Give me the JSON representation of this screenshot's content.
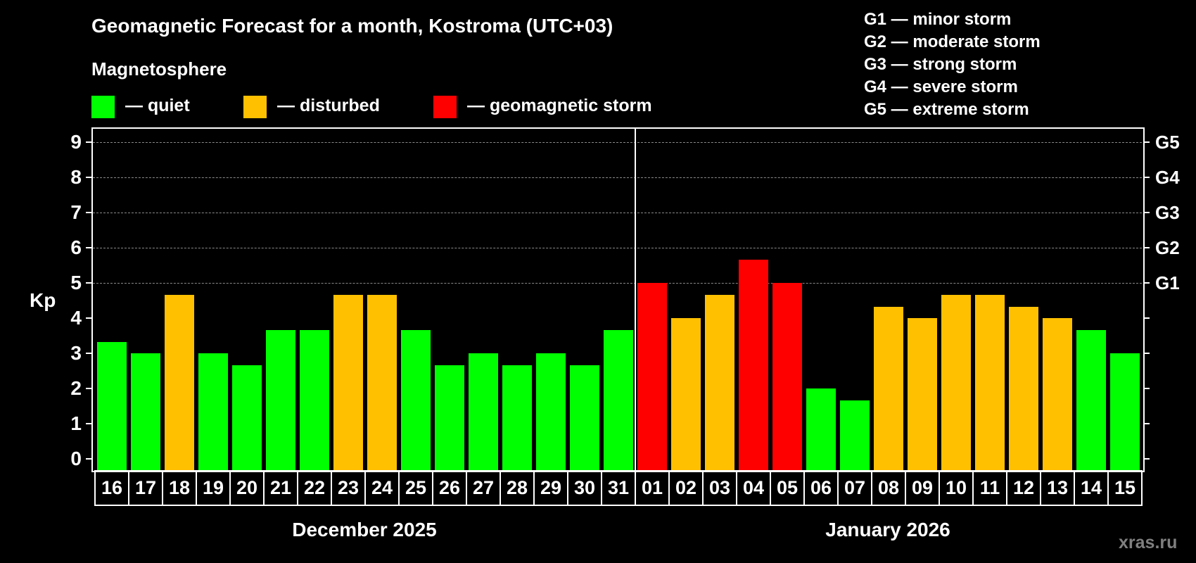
{
  "header": {
    "title": "Geomagnetic Forecast for a month, Kostroma (UTC+03)",
    "subtitle": "Magnetosphere"
  },
  "legend": {
    "items": [
      {
        "label": "— quiet",
        "color": "#00ff00"
      },
      {
        "label": "— disturbed",
        "color": "#ffc000"
      },
      {
        "label": "— geomagnetic storm",
        "color": "#ff0000"
      }
    ]
  },
  "storm_scale": [
    "G1 — minor storm",
    "G2 — moderate storm",
    "G3 — strong storm",
    "G4 — severe storm",
    "G5 — extreme storm"
  ],
  "axes": {
    "y_title": "Kp",
    "y_ticks": [
      "0",
      "1",
      "2",
      "3",
      "4",
      "5",
      "6",
      "7",
      "8",
      "9"
    ],
    "right_labels": {
      "5": "G1",
      "6": "G2",
      "7": "G3",
      "8": "G4",
      "9": "G5"
    },
    "months": [
      {
        "label": "December 2025"
      },
      {
        "label": "January 2026"
      }
    ]
  },
  "watermark": "xras.ru",
  "colors": {
    "quiet": "#00ff00",
    "disturbed": "#ffc000",
    "storm": "#ff0000",
    "background": "#000000",
    "grid": "#8a8a8a",
    "watermark": "#7f7f7f"
  },
  "chart_data": {
    "type": "bar",
    "title": "Geomagnetic Forecast for a month, Kostroma (UTC+03)",
    "subtitle": "Magnetosphere",
    "xlabel": "",
    "ylabel": "Kp",
    "ylim": [
      0,
      9
    ],
    "grid": true,
    "legend": [
      "quiet",
      "disturbed",
      "geomagnetic storm"
    ],
    "legend_position": "top",
    "secondary_y_labels": {
      "5": "G1",
      "6": "G2",
      "7": "G3",
      "8": "G4",
      "9": "G5"
    },
    "month_groups": [
      {
        "label": "December 2025",
        "days": [
          "16",
          "17",
          "18",
          "19",
          "20",
          "21",
          "22",
          "23",
          "24",
          "25",
          "26",
          "27",
          "28",
          "29",
          "30",
          "31"
        ]
      },
      {
        "label": "January 2026",
        "days": [
          "01",
          "02",
          "03",
          "04",
          "05",
          "06",
          "07",
          "08",
          "09",
          "10",
          "11",
          "12",
          "13",
          "14",
          "15"
        ]
      }
    ],
    "categories": [
      "16",
      "17",
      "18",
      "19",
      "20",
      "21",
      "22",
      "23",
      "24",
      "25",
      "26",
      "27",
      "28",
      "29",
      "30",
      "31",
      "01",
      "02",
      "03",
      "04",
      "05",
      "06",
      "07",
      "08",
      "09",
      "10",
      "11",
      "12",
      "13",
      "14",
      "15"
    ],
    "values": [
      3.33,
      3.0,
      4.67,
      3.0,
      2.67,
      3.67,
      3.67,
      4.67,
      4.67,
      3.67,
      2.67,
      3.0,
      2.67,
      3.0,
      2.67,
      3.67,
      5.0,
      4.0,
      4.67,
      5.67,
      5.0,
      2.0,
      1.67,
      4.33,
      4.0,
      4.67,
      4.67,
      4.33,
      4.0,
      3.67,
      3.0
    ],
    "status": [
      "quiet",
      "quiet",
      "disturbed",
      "quiet",
      "quiet",
      "quiet",
      "quiet",
      "disturbed",
      "disturbed",
      "quiet",
      "quiet",
      "quiet",
      "quiet",
      "quiet",
      "quiet",
      "quiet",
      "storm",
      "disturbed",
      "disturbed",
      "storm",
      "storm",
      "quiet",
      "quiet",
      "disturbed",
      "disturbed",
      "disturbed",
      "disturbed",
      "disturbed",
      "disturbed",
      "quiet",
      "quiet"
    ]
  }
}
